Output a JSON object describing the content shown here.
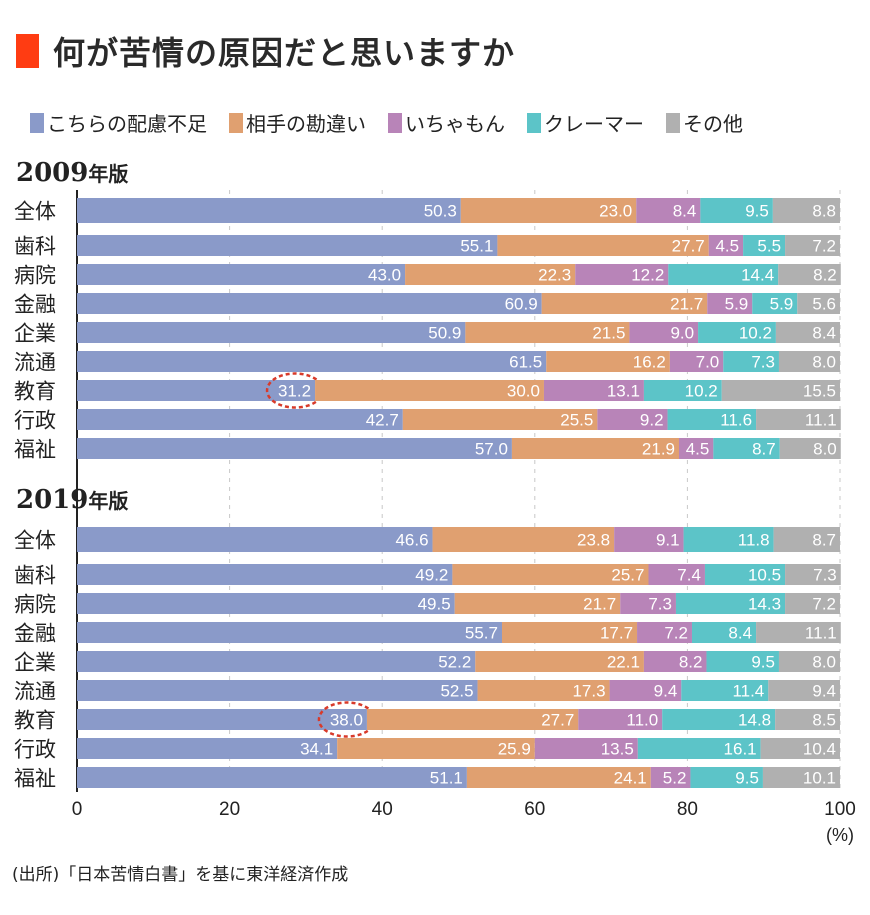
{
  "title": "何が苦情の原因だと思いますか",
  "colors": {
    "title_mark": "#ff3c12",
    "series": [
      "#8a9ac9",
      "#e0a070",
      "#b884b8",
      "#5cc4c8",
      "#b0b0b0"
    ],
    "highlight": "#d83a2a"
  },
  "source": "(出所)「日本苦情白書」を基に東洋経済作成",
  "chart_data": {
    "type": "bar",
    "orientation": "horizontal",
    "stacked": true,
    "title": "何が苦情の原因だと思いますか",
    "legend": [
      "こちらの配慮不足",
      "相手の勘違い",
      "いちゃもん",
      "クレーマー",
      "その他"
    ],
    "legend_position": "top",
    "xlim": [
      0,
      100
    ],
    "xticks": [
      "0",
      "20",
      "40",
      "60",
      "80",
      "100"
    ],
    "xunit": "(%)",
    "grid": "vertical-dashed",
    "panels": [
      {
        "title_year": "2009",
        "title_suffix": "年版",
        "categories": [
          "全体",
          "歯科",
          "病院",
          "金融",
          "企業",
          "流通",
          "教育",
          "行政",
          "福祉"
        ],
        "series": [
          {
            "name": "こちらの配慮不足",
            "values": [
              50.3,
              55.1,
              43.0,
              60.9,
              50.9,
              61.5,
              31.2,
              42.7,
              57.0
            ]
          },
          {
            "name": "相手の勘違い",
            "values": [
              23.0,
              27.7,
              22.3,
              21.7,
              21.5,
              16.2,
              30.0,
              25.5,
              21.9
            ]
          },
          {
            "name": "いちゃもん",
            "values": [
              8.4,
              4.5,
              12.2,
              5.9,
              9.0,
              7.0,
              13.1,
              9.2,
              4.5
            ]
          },
          {
            "name": "クレーマー",
            "values": [
              9.5,
              5.5,
              14.4,
              5.9,
              10.2,
              7.3,
              10.2,
              11.6,
              8.7
            ]
          },
          {
            "name": "その他",
            "values": [
              8.8,
              7.2,
              8.2,
              5.6,
              8.4,
              8.0,
              15.5,
              11.1,
              8.0
            ]
          }
        ],
        "highlight": {
          "category": "教育",
          "series": "こちらの配慮不足",
          "value": 31.2
        }
      },
      {
        "title_year": "2019",
        "title_suffix": "年版",
        "categories": [
          "全体",
          "歯科",
          "病院",
          "金融",
          "企業",
          "流通",
          "教育",
          "行政",
          "福祉"
        ],
        "series": [
          {
            "name": "こちらの配慮不足",
            "values": [
              46.6,
              49.2,
              49.5,
              55.7,
              52.2,
              52.5,
              38.0,
              34.1,
              51.1
            ]
          },
          {
            "name": "相手の勘違い",
            "values": [
              23.8,
              25.7,
              21.7,
              17.7,
              22.1,
              17.3,
              27.7,
              25.9,
              24.1
            ]
          },
          {
            "name": "いちゃもん",
            "values": [
              9.1,
              7.4,
              7.3,
              7.2,
              8.2,
              9.4,
              11.0,
              13.5,
              5.2
            ]
          },
          {
            "name": "クレーマー",
            "values": [
              11.8,
              10.5,
              14.3,
              8.4,
              9.5,
              11.4,
              14.8,
              16.1,
              9.5
            ]
          },
          {
            "name": "その他",
            "values": [
              8.7,
              7.3,
              7.2,
              11.1,
              8.0,
              9.4,
              8.5,
              10.4,
              10.1
            ]
          }
        ],
        "highlight": {
          "category": "教育",
          "series": "こちらの配慮不足",
          "value": 38.0
        }
      }
    ]
  }
}
